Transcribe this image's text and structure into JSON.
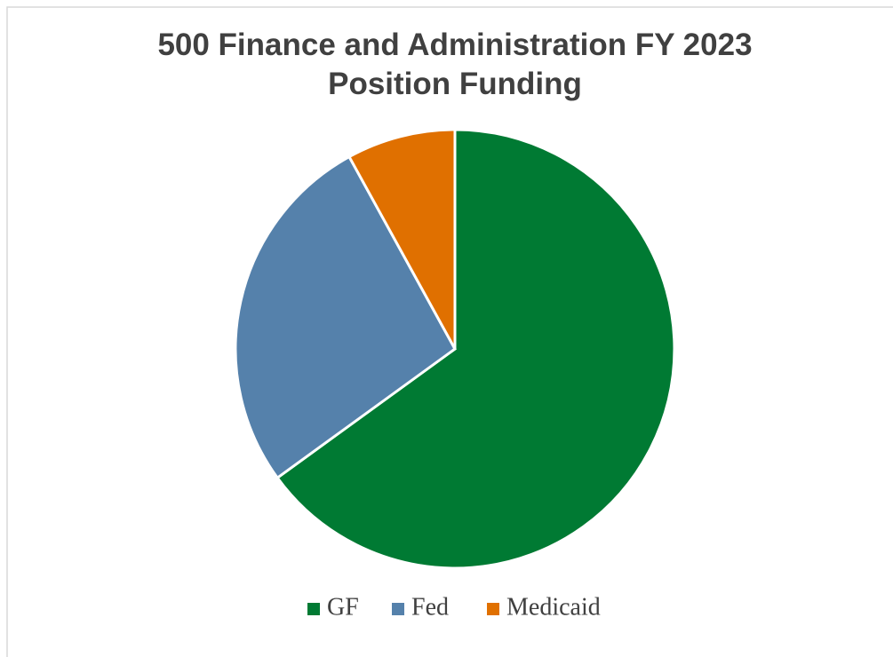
{
  "chart_data": {
    "type": "pie",
    "title": [
      "500 Finance and Administration FY 2023",
      "Position Funding"
    ],
    "categories": [
      "GF",
      "Fed",
      "Medicaid"
    ],
    "values": [
      65,
      27,
      8
    ],
    "colors": [
      "#007a33",
      "#5581ab",
      "#e07000"
    ],
    "legend": "bottom"
  }
}
